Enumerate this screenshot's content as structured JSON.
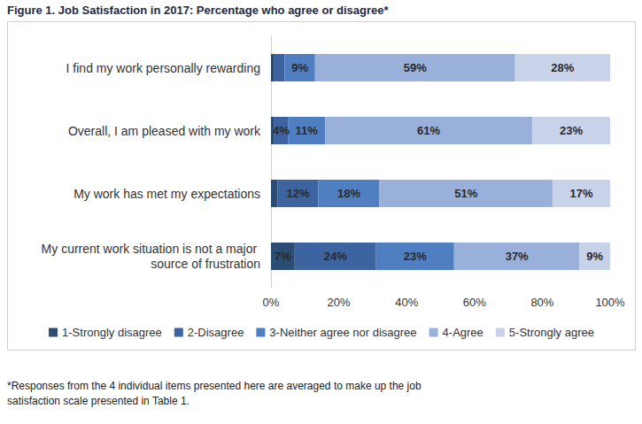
{
  "chart_data": {
    "type": "bar",
    "orientation": "horizontal",
    "stacked": true,
    "title": "Figure 1.  Job Satisfaction in 2017: Percentage who agree or disagree*",
    "annotations": [
      "*Responses from the 4 individual items presented here are averaged to make up the job satisfaction scale presented in Table 1."
    ],
    "categories": [
      "I find my work personally rewarding",
      "Overall, I am pleased with my work",
      "My work has met my expectations",
      "My current work situation is not a major source of frustration"
    ],
    "series": [
      {
        "name": "1-Strongly disagree",
        "color": "#2c4c74",
        "values": [
          1,
          1,
          2,
          7
        ],
        "value_labels": [
          null,
          null,
          null,
          "7%"
        ]
      },
      {
        "name": "2-Disagree",
        "color": "#3d64a0",
        "values": [
          3,
          4,
          12,
          24
        ],
        "value_labels": [
          null,
          "4%",
          "12%",
          "24%"
        ]
      },
      {
        "name": "3-Neither agree nor disagree",
        "color": "#4f7fc0",
        "values": [
          9,
          11,
          18,
          23
        ],
        "value_labels": [
          "9%",
          "11%",
          "18%",
          "23%"
        ]
      },
      {
        "name": "4-Agree",
        "color": "#98b0da",
        "values": [
          59,
          61,
          51,
          37
        ],
        "value_labels": [
          "59%",
          "61%",
          "51%",
          "37%"
        ]
      },
      {
        "name": "5-Strongly agree",
        "color": "#c8d2e9",
        "values": [
          28,
          23,
          17,
          9
        ],
        "value_labels": [
          "28%",
          "23%",
          "17%",
          "9%"
        ]
      }
    ],
    "xlim": [
      0,
      100
    ],
    "xticks": [
      {
        "value": 0,
        "label": "0%"
      },
      {
        "value": 20,
        "label": "20%"
      },
      {
        "value": 40,
        "label": "40%"
      },
      {
        "value": 60,
        "label": "60%"
      },
      {
        "value": 80,
        "label": "80%"
      },
      {
        "value": 100,
        "label": "100%"
      }
    ],
    "grid": false,
    "legend": "bottom",
    "data_labels": true
  }
}
